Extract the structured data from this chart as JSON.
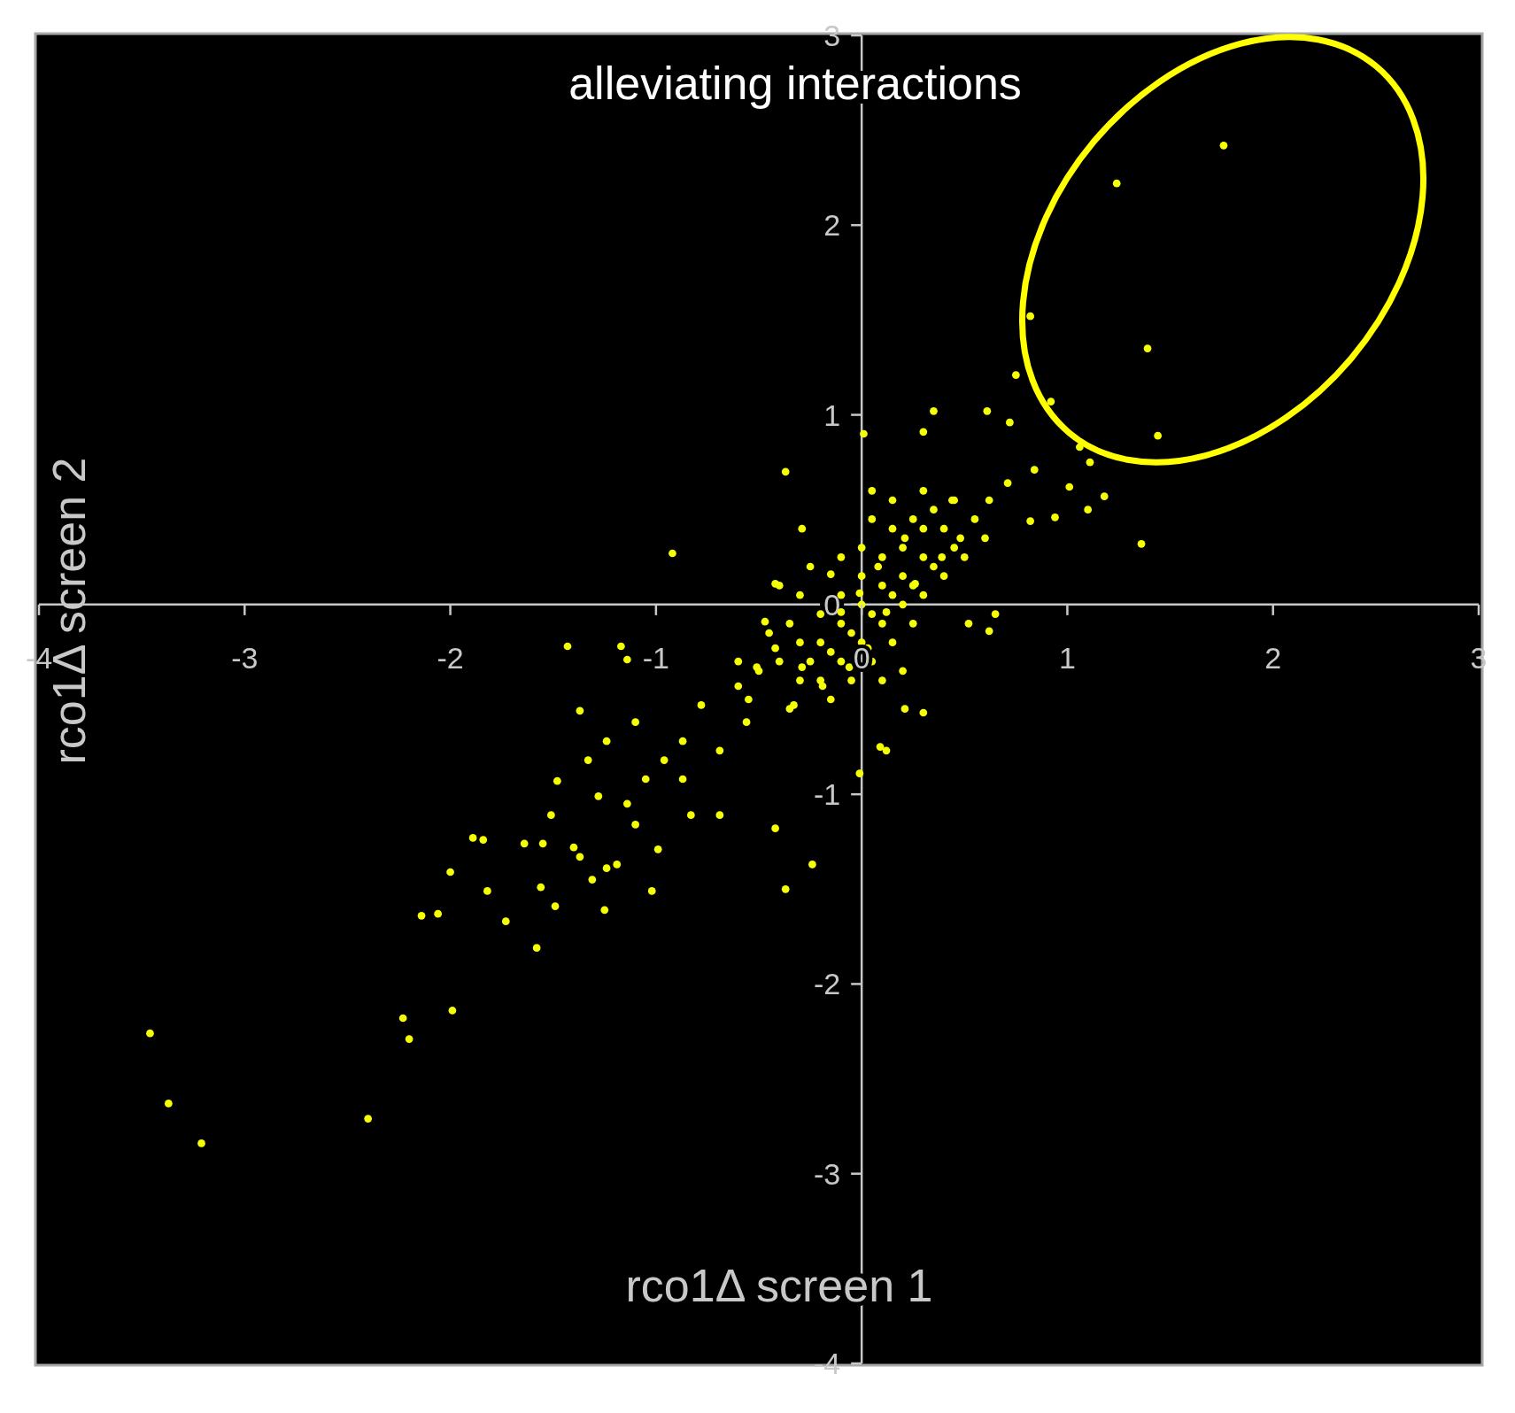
{
  "chart_data": {
    "type": "scatter",
    "title": "alleviating interactions",
    "xlabel": "rco1Δ screen 1",
    "ylabel": "rco1Δ screen 2",
    "xlim": [
      -4,
      3
    ],
    "ylim": [
      -4,
      3
    ],
    "xticks": [
      -4,
      -3,
      -2,
      -1,
      0,
      1,
      2,
      3
    ],
    "yticks": [
      -4,
      -3,
      -2,
      -1,
      0,
      1,
      2,
      3
    ],
    "grid": false,
    "marker": "circle",
    "series": [
      {
        "color": "#f5ff00",
        "x": [
          -3.46,
          -3.37,
          -3.21,
          -2.4,
          -2.23,
          -2.2,
          -1.99,
          -2.14,
          -2.06,
          -2.0,
          -1.89,
          -1.84,
          -1.82,
          -1.73,
          -1.64,
          -1.58,
          -1.56,
          -1.55,
          -1.49,
          -1.48,
          -1.43,
          -1.37,
          -1.17,
          -1.14,
          -0.92,
          -0.37,
          0.01,
          1.76,
          1.24,
          0.82,
          1.39,
          1.44,
          1.36,
          0.92,
          0.75,
          1.11,
          1.18,
          1.06,
          1.01,
          1.1,
          0.94,
          0.82,
          0.84,
          0.72,
          0.61,
          0.35,
          0.3,
          0.65,
          0.62,
          0.52,
          0.21,
          0.3,
          0.12,
          0.09,
          -0.01,
          -0.24,
          -0.37,
          -0.42,
          -0.69,
          -1.02,
          -1.24,
          -1.25,
          -1.4,
          -1.37,
          -1.31,
          -1.19,
          -0.99,
          -1.14,
          -1.05,
          -0.87,
          -0.78,
          -0.6,
          -0.51,
          -0.42,
          -1.24,
          -1.1,
          -0.87,
          -0.69,
          -0.96,
          -1.33,
          -1.28,
          -1.51,
          -1.1,
          -0.83,
          -0.56,
          -0.33,
          -0.19,
          -0.29,
          -0.47,
          -0.42,
          -0.29,
          -0.15,
          -0.1,
          0.03,
          -0.06,
          0.12,
          0.26,
          0.39,
          0.48,
          0.62,
          0.71,
          0.44,
          0.21,
          0.08,
          -0.01,
          -0.3,
          -0.2,
          -0.1,
          0,
          0.1,
          0.2,
          0.3,
          -0.25,
          -0.15,
          -0.05,
          0.05,
          0.15,
          0.25,
          0.35,
          -0.2,
          -0.1,
          0,
          0.1,
          0.2,
          0.3,
          -0.35,
          -0.3,
          -0.2,
          -0.1,
          0,
          0.1,
          0.2,
          0.3,
          0.4,
          0.45,
          0.4,
          -0.4,
          -0.45,
          -0.5,
          -0.1,
          0,
          0.15,
          0.25,
          0.05,
          0.35,
          -0.05,
          0.05,
          0.15,
          0.25,
          0.5,
          0.55,
          -0.3,
          -0.4,
          0.15,
          0.3,
          -0.55,
          -0.6,
          0.45,
          0.6,
          -0.25,
          0.1,
          0.2,
          -0.15,
          -0.35,
          0.05
        ],
        "values": [
          -2.26,
          -2.63,
          -2.84,
          -2.71,
          -2.18,
          -2.29,
          -2.14,
          -1.64,
          -1.63,
          -1.41,
          -1.23,
          -1.24,
          -1.51,
          -1.67,
          -1.26,
          -1.81,
          -1.49,
          -1.26,
          -1.59,
          -0.93,
          -0.22,
          -0.56,
          -0.22,
          -0.29,
          0.27,
          0.7,
          0.9,
          2.42,
          2.22,
          1.52,
          1.35,
          0.89,
          0.32,
          1.07,
          1.21,
          0.75,
          0.57,
          0.83,
          0.62,
          0.5,
          0.46,
          0.44,
          0.71,
          0.96,
          1.02,
          1.02,
          0.91,
          -0.05,
          -0.14,
          -0.1,
          -0.55,
          -0.57,
          -0.77,
          -0.75,
          -0.89,
          -1.37,
          -1.5,
          -1.18,
          -1.11,
          -1.51,
          -1.39,
          -1.61,
          -1.28,
          -1.33,
          -1.45,
          -1.37,
          -1.29,
          -1.05,
          -0.92,
          -0.72,
          -0.53,
          -0.43,
          -0.33,
          -0.23,
          -0.72,
          -0.62,
          -0.92,
          -0.77,
          -0.82,
          -0.82,
          -1.01,
          -1.11,
          -1.16,
          -1.11,
          -0.62,
          -0.53,
          -0.43,
          -0.33,
          -0.09,
          0.11,
          0.4,
          0.16,
          -0.04,
          -0.23,
          -0.33,
          -0.04,
          0.11,
          0.25,
          0.35,
          0.55,
          0.64,
          0.55,
          0.35,
          0.2,
          0.06,
          -0.2,
          -0.2,
          -0.1,
          0,
          0.1,
          0.15,
          0.25,
          -0.3,
          -0.25,
          -0.15,
          -0.05,
          0.05,
          0.1,
          0.2,
          -0.05,
          0.05,
          0.15,
          0.25,
          0.3,
          0.4,
          -0.1,
          -0.4,
          -0.4,
          -0.3,
          -0.2,
          -0.1,
          0,
          0.05,
          0.15,
          0.3,
          0.4,
          -0.3,
          -0.15,
          -0.35,
          0.25,
          0.3,
          0.4,
          0.45,
          0.45,
          0.5,
          -0.4,
          -0.3,
          -0.2,
          -0.1,
          0.25,
          0.45,
          0.05,
          0.1,
          0.55,
          0.6,
          -0.5,
          -0.3,
          0.55,
          0.35,
          0.2,
          -0.4,
          -0.35,
          -0.5,
          -0.55,
          0.6
        ]
      }
    ]
  }
}
